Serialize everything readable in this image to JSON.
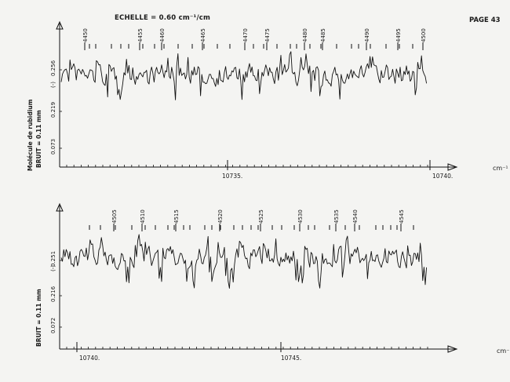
{
  "header": {
    "scale_label": "ECHELLE = 0.60 cm⁻¹/cm",
    "page_label": "PAGE 43"
  },
  "y_title_line1": "Molécule de rubidium",
  "y_title_line2": "BRUIT = 0.11 mm",
  "chart_data": [
    {
      "type": "line",
      "xlabel": "cm⁻¹",
      "x_ticks": [
        "10735.",
        "10740."
      ],
      "y_ticks": [
        "0.256",
        "0.219",
        "0.073"
      ],
      "noise_label": "BRUIT = 0.11 mm",
      "bracket_label": "(-)",
      "lines": [
        "4450",
        "4455",
        "4460",
        "4465",
        "4470",
        "4475",
        "4480",
        "4485",
        "4490",
        "4495",
        "4500"
      ],
      "grid": false
    },
    {
      "type": "line",
      "xlabel": "cm⁻",
      "x_ticks": [
        "10740.",
        "10745."
      ],
      "y_ticks": [
        "0.251",
        "0.216",
        "0.072"
      ],
      "noise_label": "BRUIT = 0.11 mm",
      "bracket_label": "(-)",
      "lines": [
        "4505",
        "4510",
        "4515",
        "4520",
        "4525",
        "4530",
        "4535",
        "4540",
        "4545"
      ],
      "grid": false
    }
  ]
}
